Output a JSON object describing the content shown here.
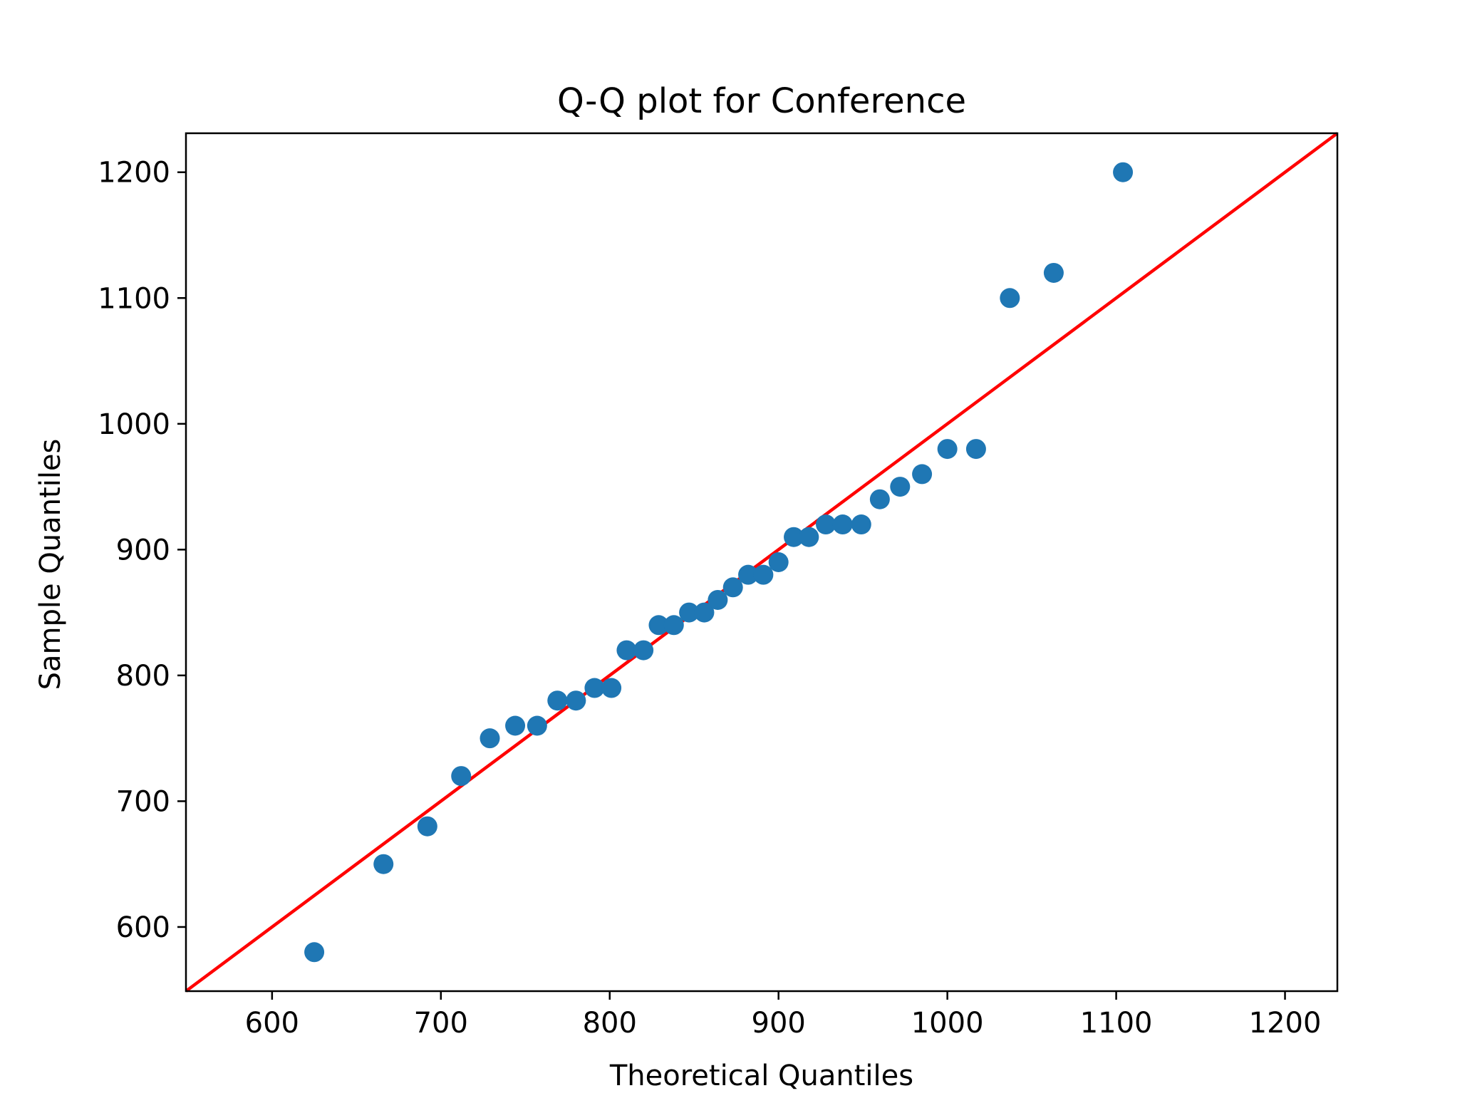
{
  "chart_data": {
    "type": "scatter",
    "title": "Q-Q plot for Conference",
    "xlabel": "Theoretical Quantiles",
    "ylabel": "Sample Quantiles",
    "xlim": [
      549,
      1231
    ],
    "ylim": [
      549,
      1231
    ],
    "xticks": [
      600,
      700,
      800,
      900,
      1000,
      1100,
      1200
    ],
    "yticks": [
      600,
      700,
      800,
      900,
      1000,
      1100,
      1200
    ],
    "grid": false,
    "point_color": "#1f77b4",
    "line_color": "#ff0000",
    "reference_line": {
      "x": [
        549,
        1231
      ],
      "y": [
        549,
        1231
      ]
    },
    "points": [
      {
        "x": 625,
        "y": 580
      },
      {
        "x": 666,
        "y": 650
      },
      {
        "x": 692,
        "y": 680
      },
      {
        "x": 712,
        "y": 720
      },
      {
        "x": 729,
        "y": 750
      },
      {
        "x": 744,
        "y": 760
      },
      {
        "x": 757,
        "y": 760
      },
      {
        "x": 769,
        "y": 780
      },
      {
        "x": 780,
        "y": 780
      },
      {
        "x": 791,
        "y": 790
      },
      {
        "x": 801,
        "y": 790
      },
      {
        "x": 810,
        "y": 820
      },
      {
        "x": 820,
        "y": 820
      },
      {
        "x": 829,
        "y": 840
      },
      {
        "x": 838,
        "y": 840
      },
      {
        "x": 847,
        "y": 850
      },
      {
        "x": 856,
        "y": 850
      },
      {
        "x": 864,
        "y": 860
      },
      {
        "x": 873,
        "y": 870
      },
      {
        "x": 882,
        "y": 880
      },
      {
        "x": 891,
        "y": 880
      },
      {
        "x": 900,
        "y": 890
      },
      {
        "x": 909,
        "y": 910
      },
      {
        "x": 918,
        "y": 910
      },
      {
        "x": 928,
        "y": 920
      },
      {
        "x": 938,
        "y": 920
      },
      {
        "x": 949,
        "y": 920
      },
      {
        "x": 960,
        "y": 940
      },
      {
        "x": 972,
        "y": 950
      },
      {
        "x": 985,
        "y": 960
      },
      {
        "x": 1000,
        "y": 980
      },
      {
        "x": 1017,
        "y": 980
      },
      {
        "x": 1037,
        "y": 1100
      },
      {
        "x": 1063,
        "y": 1120
      },
      {
        "x": 1104,
        "y": 1200
      }
    ]
  }
}
